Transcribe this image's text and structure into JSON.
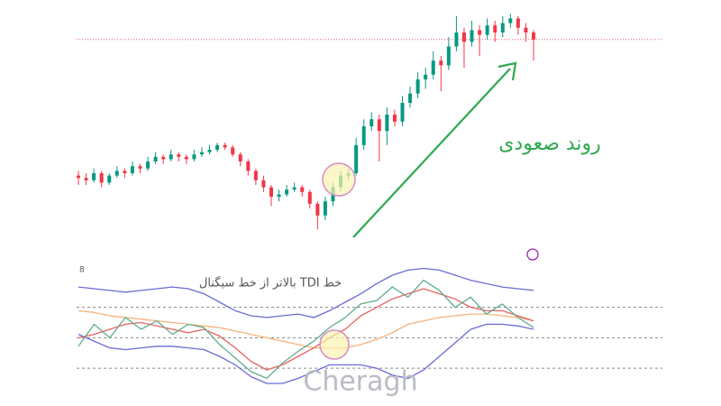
{
  "watermark": "Cheragh",
  "chart_data": [
    {
      "type": "candlestick",
      "trend_label": "روند صعودی",
      "ylim": [
        0,
        100
      ],
      "up_color": "#089981",
      "down_color": "#f23645",
      "open": [
        29,
        28,
        27,
        30,
        26,
        29,
        31,
        30,
        33,
        32,
        35,
        37,
        36,
        38,
        37,
        36,
        38,
        39,
        40,
        42,
        41,
        38,
        35,
        31,
        27,
        24,
        20,
        21,
        23,
        24,
        22,
        17,
        12,
        18,
        24,
        29,
        30,
        42,
        50,
        53,
        48,
        55,
        52,
        60,
        64,
        70,
        72,
        78,
        76,
        84,
        90,
        86,
        91,
        89,
        93,
        90,
        94,
        96,
        92,
        90
      ],
      "high": [
        31,
        30,
        32,
        31,
        30,
        33,
        32,
        35,
        34,
        37,
        39,
        38,
        40,
        39,
        38,
        40,
        41,
        42,
        43,
        43,
        42,
        39,
        36,
        32,
        29,
        25,
        23,
        25,
        26,
        25,
        23,
        18,
        20,
        26,
        31,
        32,
        45,
        53,
        56,
        55,
        58,
        57,
        63,
        67,
        73,
        75,
        82,
        80,
        88,
        97,
        92,
        95,
        93,
        96,
        95,
        97,
        98,
        97,
        94,
        91
      ],
      "low": [
        25,
        25,
        26,
        24,
        25,
        28,
        28,
        29,
        30,
        31,
        34,
        34,
        35,
        35,
        34,
        35,
        37,
        38,
        39,
        40,
        37,
        33,
        29,
        25,
        22,
        16,
        18,
        20,
        22,
        20,
        15,
        6,
        10,
        16,
        22,
        27,
        29,
        40,
        48,
        35,
        42,
        50,
        50,
        58,
        62,
        66,
        70,
        65,
        74,
        82,
        75,
        84,
        80,
        87,
        86,
        88,
        92,
        89,
        86,
        78
      ],
      "close": [
        28,
        27,
        30,
        26,
        29,
        31,
        30,
        33,
        32,
        35,
        37,
        36,
        38,
        37,
        36,
        38,
        39,
        40,
        42,
        41,
        38,
        35,
        31,
        27,
        24,
        20,
        21,
        23,
        24,
        22,
        17,
        12,
        18,
        24,
        29,
        30,
        42,
        50,
        53,
        48,
        55,
        52,
        60,
        64,
        70,
        72,
        78,
        76,
        84,
        90,
        86,
        91,
        89,
        93,
        90,
        94,
        96,
        92,
        90,
        87
      ]
    },
    {
      "type": "line",
      "title": "8",
      "annotation": "خط TDI بالاتر از خط سیگنال",
      "ylim": [
        15,
        95
      ],
      "levels": [
        68,
        50,
        32
      ],
      "series": [
        {
          "color": "#6b6bd6",
          "values": [
            80,
            79,
            78,
            77,
            78,
            79,
            80,
            79,
            76,
            71,
            66,
            63,
            62,
            63,
            64,
            62,
            66,
            71,
            76,
            82,
            87,
            90,
            91,
            90,
            87,
            84,
            82,
            80,
            79,
            78
          ]
        },
        {
          "color": "#6b6bd6",
          "values": [
            52,
            48,
            44,
            43,
            44,
            45,
            45,
            44,
            43,
            39,
            34,
            27,
            23,
            23,
            26,
            30,
            34,
            34,
            34,
            32,
            28,
            26,
            31,
            39,
            47,
            55,
            58,
            58,
            57,
            55
          ]
        },
        {
          "color": "#f5b27a",
          "values": [
            66,
            65,
            63,
            62,
            61,
            60,
            59,
            58,
            57,
            56,
            54,
            52,
            50,
            48,
            46,
            44,
            44,
            44,
            46,
            49,
            53,
            58,
            60,
            62,
            63,
            64,
            64,
            63,
            62,
            60
          ]
        },
        {
          "color": "#e8615f",
          "values": [
            50,
            52,
            55,
            58,
            59,
            57,
            55,
            53,
            55,
            51,
            44,
            36,
            31,
            34,
            39,
            44,
            50,
            55,
            63,
            68,
            73,
            76,
            79,
            76,
            73,
            68,
            66,
            66,
            63,
            60
          ]
        },
        {
          "color": "#5fae8f",
          "values": [
            45,
            58,
            50,
            62,
            55,
            60,
            52,
            58,
            56,
            46,
            38,
            30,
            26,
            35,
            42,
            48,
            56,
            62,
            70,
            72,
            80,
            74,
            84,
            78,
            68,
            74,
            64,
            70,
            62,
            56
          ]
        }
      ]
    }
  ]
}
